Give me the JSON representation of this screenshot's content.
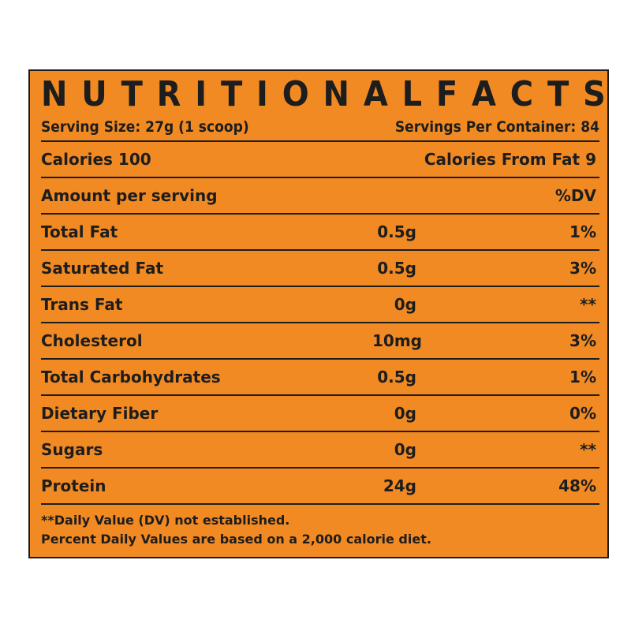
{
  "label": {
    "title": "NUTRITIONAL FACTS",
    "serving_size": "Serving Size: 27g (1 scoop)",
    "servings_per_container": "Servings Per Container: 84",
    "calories": "Calories 100",
    "calories_from_fat": "Calories From Fat 9",
    "amount_header": "Amount per serving",
    "dv_header": "%DV",
    "nutrients": [
      {
        "name": "Total Fat",
        "amount": "0.5g",
        "dv": "1%"
      },
      {
        "name": "Saturated Fat",
        "amount": "0.5g",
        "dv": "3%"
      },
      {
        "name": "Trans Fat",
        "amount": "0g",
        "dv": "**"
      },
      {
        "name": "Cholesterol",
        "amount": "10mg",
        "dv": "3%"
      },
      {
        "name": "Total Carbohydrates",
        "amount": "0.5g",
        "dv": "1%"
      },
      {
        "name": "Dietary Fiber",
        "amount": "0g",
        "dv": "0%"
      },
      {
        "name": "Sugars",
        "amount": "0g",
        "dv": "**"
      },
      {
        "name": "Protein",
        "amount": "24g",
        "dv": "48%"
      }
    ],
    "footnote_1": "**Daily Value (DV) not established.",
    "footnote_2": "Percent Daily Values are based on a 2,000 calorie diet."
  },
  "colors": {
    "background": "#f18a22",
    "text": "#1d1d1d"
  }
}
